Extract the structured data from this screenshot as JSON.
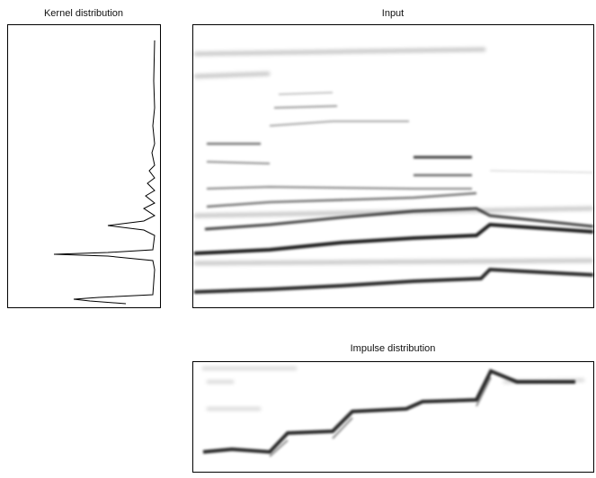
{
  "panels": [
    {
      "title": "Kernel distribution"
    },
    {
      "title": "Input"
    },
    {
      "title": "Impulse distribution"
    }
  ]
}
